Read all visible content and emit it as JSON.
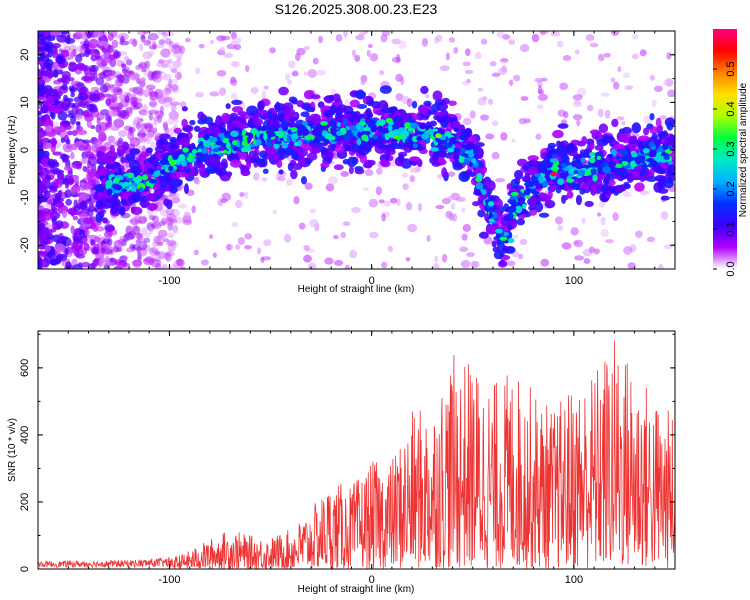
{
  "title": "S126.2025.308.00.23.E23",
  "chart_data": [
    {
      "type": "heatmap",
      "name": "spectrogram",
      "xlabel": "Height of straight line (km)",
      "ylabel": "Frequency (Hz)",
      "xlim": [
        -165,
        150
      ],
      "ylim": [
        -25,
        25
      ],
      "xticks": [
        -100,
        0,
        100
      ],
      "yticks": [
        -20,
        -10,
        0,
        10,
        20
      ],
      "colorbar": {
        "label": "Normalized spectral amplitude",
        "range": [
          0.0,
          0.6
        ],
        "ticks": [
          0.0,
          0.1,
          0.2,
          0.3,
          0.4,
          0.5
        ],
        "colormap": "rainbow (purple-blue-cyan-green-yellow-orange-red-magenta)",
        "stops": [
          "#ffffff",
          "#b000ff",
          "#3a00ff",
          "#0030ff",
          "#00b0ff",
          "#00e8c8",
          "#00ff40",
          "#aaff00",
          "#ffe000",
          "#ff8000",
          "#ff0000",
          "#ff0080"
        ]
      },
      "ridge": {
        "x": [
          -130,
          -115,
          -100,
          -85,
          -70,
          -55,
          -40,
          -25,
          -10,
          0,
          10,
          25,
          40,
          50,
          55,
          60,
          65,
          70,
          80,
          90,
          100,
          115,
          130,
          145
        ],
        "y": [
          -7,
          -7,
          -3,
          0,
          2,
          2.5,
          3.5,
          3,
          4,
          4,
          4,
          3,
          2.5,
          -2,
          -8,
          -14,
          -20,
          -12,
          -7,
          -4,
          -4,
          -3,
          -2,
          -1
        ]
      },
      "noise_region_x": [
        -165,
        -95
      ]
    },
    {
      "type": "line",
      "name": "snr",
      "xlabel": "Height of straight line (km)",
      "ylabel": "SNR (10 * v/v)",
      "xlim": [
        -165,
        150
      ],
      "ylim": [
        0,
        710
      ],
      "xticks": [
        -100,
        0,
        100
      ],
      "yticks": [
        0,
        200,
        400,
        600
      ],
      "color": "#ee3333",
      "envelope": {
        "x": [
          -165,
          -120,
          -100,
          -90,
          -80,
          -70,
          -60,
          -50,
          -40,
          -30,
          -20,
          -10,
          0,
          10,
          20,
          30,
          40,
          50,
          60,
          70,
          80,
          90,
          100,
          110,
          120,
          130,
          140,
          150
        ],
        "y": [
          18,
          22,
          30,
          55,
          90,
          120,
          100,
          95,
          120,
          180,
          260,
          250,
          320,
          330,
          470,
          500,
          640,
          620,
          560,
          600,
          540,
          480,
          560,
          600,
          700,
          620,
          520,
          460
        ]
      }
    }
  ]
}
